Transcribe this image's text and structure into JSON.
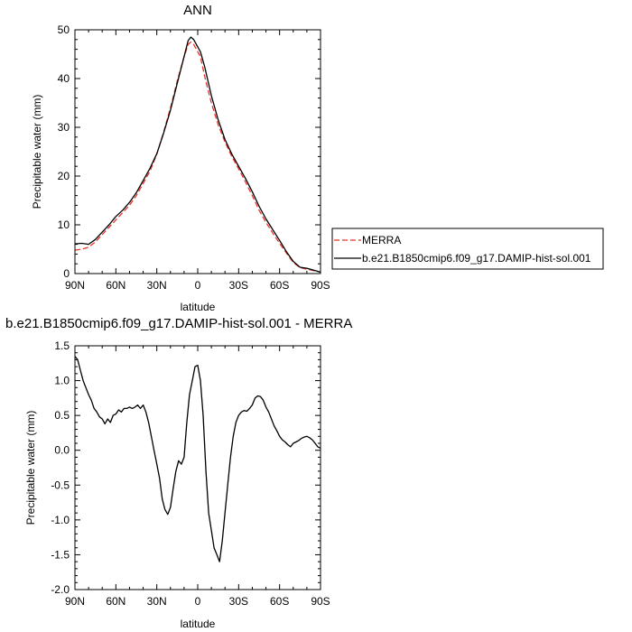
{
  "chart_data": [
    {
      "type": "line",
      "title": "ANN",
      "xlabel": "latitude",
      "ylabel": "Precipitable water (mm)",
      "xlim": [
        90,
        -90
      ],
      "ylim": [
        0,
        50
      ],
      "xticks": [
        90,
        60,
        30,
        0,
        -30,
        -60,
        -90
      ],
      "xtick_labels": [
        "90N",
        "60N",
        "30N",
        "0",
        "30S",
        "60S",
        "90S"
      ],
      "yticks": [
        0,
        10,
        20,
        30,
        40,
        50
      ],
      "ytick_labels": [
        "0",
        "10",
        "20",
        "30",
        "40",
        "50"
      ],
      "legend_position": "right",
      "series": [
        {
          "name": "MERRA",
          "color": "#e8322b",
          "dash": "dashed",
          "x": [
            90,
            85,
            80,
            75,
            70,
            65,
            60,
            55,
            50,
            45,
            40,
            35,
            30,
            25,
            20,
            15,
            10,
            7,
            5,
            3,
            0,
            -2,
            -5,
            -10,
            -15,
            -20,
            -25,
            -30,
            -35,
            -40,
            -45,
            -50,
            -55,
            -60,
            -65,
            -70,
            -75,
            -80,
            -85,
            -90
          ],
          "y": [
            4.8,
            5.0,
            5.4,
            6.5,
            8.0,
            9.5,
            11.0,
            12.5,
            14.0,
            16.0,
            18.5,
            21.0,
            24.5,
            29.0,
            34.0,
            39.5,
            44.5,
            47.0,
            47.5,
            47.0,
            45.5,
            44.5,
            40.5,
            35.0,
            30.5,
            27.0,
            24.0,
            21.5,
            18.8,
            16.0,
            13.0,
            10.5,
            8.3,
            6.2,
            4.2,
            2.3,
            1.2,
            0.9,
            0.6,
            0.3
          ]
        },
        {
          "name": "b.e21.B1850cmip6.f09_g17.DAMIP-hist-sol.001",
          "color": "#000000",
          "dash": "solid",
          "x": [
            90,
            85,
            80,
            75,
            70,
            65,
            60,
            55,
            50,
            45,
            40,
            35,
            30,
            25,
            20,
            15,
            10,
            7,
            5,
            3,
            0,
            -2,
            -5,
            -10,
            -15,
            -20,
            -25,
            -30,
            -35,
            -40,
            -45,
            -50,
            -55,
            -60,
            -65,
            -70,
            -75,
            -80,
            -85,
            -90
          ],
          "y": [
            6.1,
            6.2,
            6.0,
            7.0,
            8.5,
            10.0,
            11.7,
            13.0,
            14.6,
            16.6,
            19.1,
            21.6,
            24.6,
            28.8,
            33.5,
            39.0,
            44.5,
            47.8,
            48.5,
            48.0,
            46.5,
            45.5,
            42.5,
            36.5,
            31.5,
            27.5,
            24.5,
            22.0,
            19.5,
            16.8,
            13.8,
            11.2,
            9.0,
            6.8,
            4.5,
            2.5,
            1.3,
            1.1,
            0.7,
            0.3
          ]
        }
      ]
    },
    {
      "type": "line",
      "title": "b.e21.B1850cmip6.f09_g17.DAMIP-hist-sol.001 - MERRA",
      "xlabel": "latitude",
      "ylabel": "Precipitable water (mm)",
      "xlim": [
        90,
        -90
      ],
      "ylim": [
        -2.0,
        1.5
      ],
      "xticks": [
        90,
        60,
        30,
        0,
        -30,
        -60,
        -90
      ],
      "xtick_labels": [
        "90N",
        "60N",
        "30N",
        "0",
        "30S",
        "60S",
        "90S"
      ],
      "yticks": [
        -2.0,
        -1.5,
        -1.0,
        -0.5,
        0.0,
        0.5,
        1.0,
        1.5
      ],
      "ytick_labels": [
        "-2.0",
        "-1.5",
        "-1.0",
        "-0.5",
        "0.0",
        "0.5",
        "1.0",
        "1.5"
      ],
      "series": [
        {
          "color": "#000000",
          "dash": "solid",
          "x": [
            90,
            88,
            86,
            84,
            82,
            80,
            78,
            76,
            74,
            72,
            70,
            68,
            66,
            64,
            62,
            60,
            58,
            56,
            54,
            52,
            50,
            48,
            46,
            44,
            42,
            40,
            38,
            36,
            34,
            32,
            30,
            28,
            26,
            24,
            22,
            20,
            18,
            16,
            14,
            12,
            10,
            8,
            6,
            4,
            2,
            0,
            -2,
            -4,
            -6,
            -8,
            -10,
            -12,
            -14,
            -16,
            -18,
            -20,
            -22,
            -24,
            -26,
            -28,
            -30,
            -32,
            -34,
            -36,
            -38,
            -40,
            -42,
            -44,
            -46,
            -48,
            -50,
            -52,
            -54,
            -56,
            -58,
            -60,
            -62,
            -64,
            -66,
            -68,
            -70,
            -72,
            -74,
            -76,
            -78,
            -80,
            -82,
            -84,
            -86,
            -88,
            -90
          ],
          "y": [
            1.35,
            1.3,
            1.15,
            1.0,
            0.9,
            0.8,
            0.72,
            0.6,
            0.55,
            0.48,
            0.45,
            0.38,
            0.45,
            0.4,
            0.5,
            0.52,
            0.58,
            0.55,
            0.6,
            0.6,
            0.62,
            0.6,
            0.62,
            0.65,
            0.6,
            0.65,
            0.55,
            0.4,
            0.2,
            0.0,
            -0.2,
            -0.4,
            -0.7,
            -0.85,
            -0.92,
            -0.82,
            -0.55,
            -0.3,
            -0.15,
            -0.2,
            -0.1,
            0.4,
            0.8,
            1.0,
            1.2,
            1.22,
            1.0,
            0.5,
            -0.3,
            -0.9,
            -1.15,
            -1.4,
            -1.5,
            -1.6,
            -1.3,
            -0.9,
            -0.5,
            -0.1,
            0.2,
            0.4,
            0.5,
            0.55,
            0.57,
            0.56,
            0.6,
            0.65,
            0.75,
            0.78,
            0.77,
            0.72,
            0.62,
            0.55,
            0.45,
            0.35,
            0.28,
            0.2,
            0.15,
            0.12,
            0.08,
            0.05,
            0.1,
            0.12,
            0.14,
            0.17,
            0.19,
            0.2,
            0.18,
            0.15,
            0.1,
            0.05,
            0.03
          ]
        }
      ]
    }
  ]
}
